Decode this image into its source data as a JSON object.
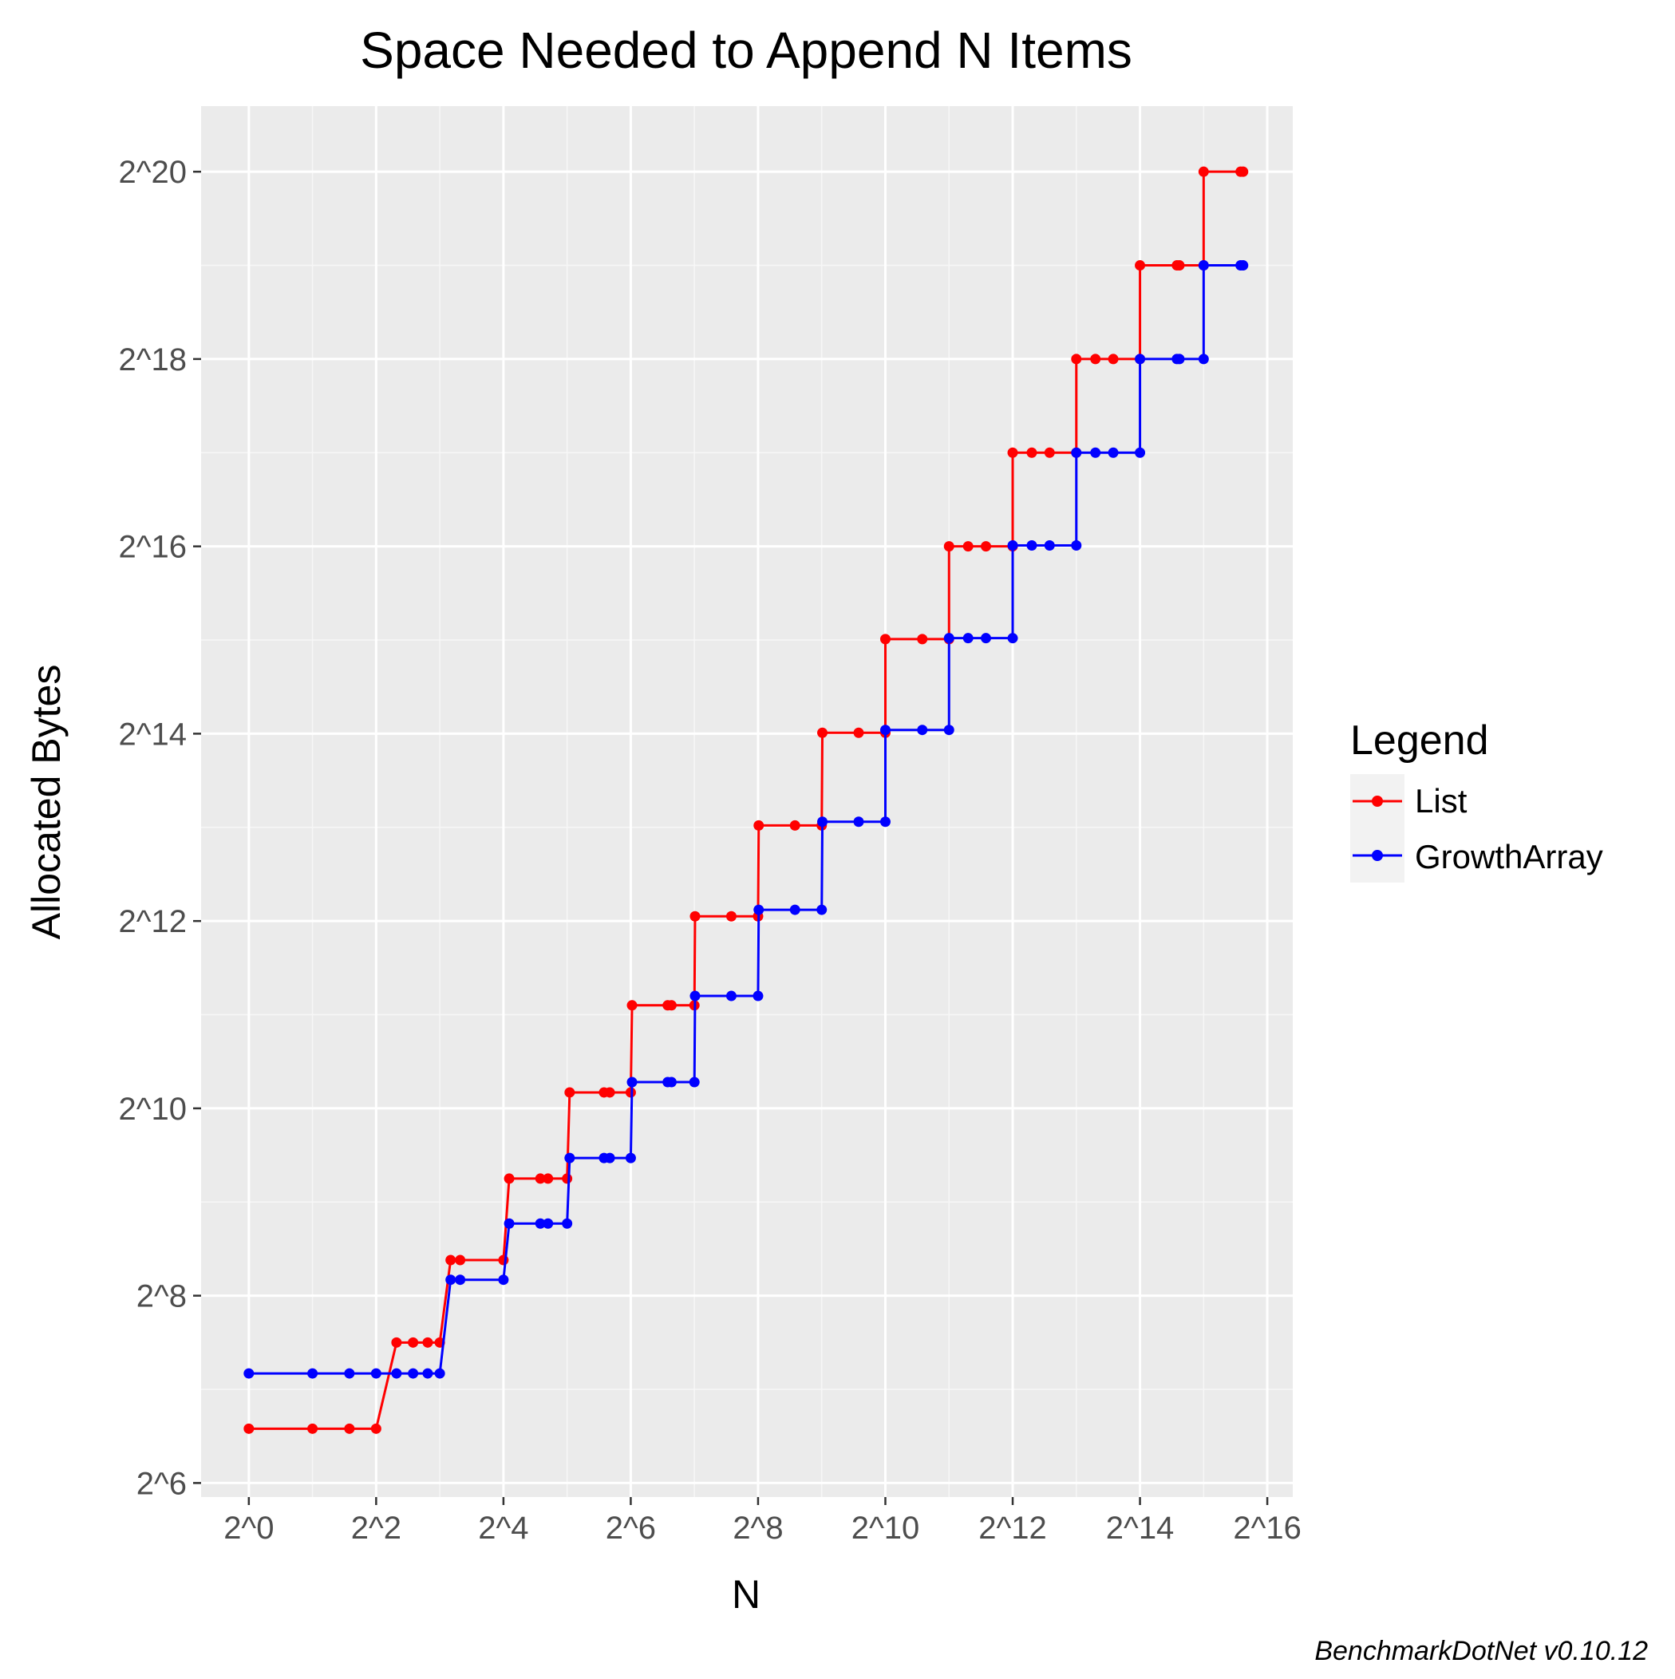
{
  "chart_data": {
    "type": "line",
    "title": "Space Needed to Append N Items",
    "xlabel": "N",
    "ylabel": "Allocated Bytes",
    "x_scale": "log2",
    "y_scale": "log2",
    "xlim_log2": [
      -0.75,
      16.4
    ],
    "ylim_log2": [
      5.85,
      20.7
    ],
    "x_ticks": [
      {
        "log2": 0,
        "label": "2^0"
      },
      {
        "log2": 2,
        "label": "2^2"
      },
      {
        "log2": 4,
        "label": "2^4"
      },
      {
        "log2": 6,
        "label": "2^6"
      },
      {
        "log2": 8,
        "label": "2^8"
      },
      {
        "log2": 10,
        "label": "2^10"
      },
      {
        "log2": 12,
        "label": "2^12"
      },
      {
        "log2": 14,
        "label": "2^14"
      },
      {
        "log2": 16,
        "label": "2^16"
      }
    ],
    "y_ticks": [
      {
        "log2": 6,
        "label": "2^6"
      },
      {
        "log2": 8,
        "label": "2^8"
      },
      {
        "log2": 10,
        "label": "2^10"
      },
      {
        "log2": 12,
        "label": "2^12"
      },
      {
        "log2": 14,
        "label": "2^14"
      },
      {
        "log2": 16,
        "label": "2^16"
      },
      {
        "log2": 18,
        "label": "2^18"
      },
      {
        "log2": 20,
        "label": "2^20"
      }
    ],
    "grid": true,
    "legend": {
      "title": "Legend",
      "position": "right"
    },
    "caption": "BenchmarkDotNet v0.10.12",
    "series": [
      {
        "name": "List",
        "color": "#ff0000",
        "points_log2": [
          [
            0,
            6.58
          ],
          [
            1,
            6.58
          ],
          [
            1.58,
            6.58
          ],
          [
            2,
            6.58
          ],
          [
            2.32,
            7.5
          ],
          [
            2.58,
            7.5
          ],
          [
            2.81,
            7.5
          ],
          [
            3,
            7.5
          ],
          [
            3.17,
            8.38
          ],
          [
            3.32,
            8.38
          ],
          [
            4,
            8.38
          ],
          [
            4.09,
            9.25
          ],
          [
            4.58,
            9.25
          ],
          [
            4.7,
            9.25
          ],
          [
            5,
            9.25
          ],
          [
            5.04,
            10.17
          ],
          [
            5.58,
            10.17
          ],
          [
            5.67,
            10.17
          ],
          [
            6,
            10.17
          ],
          [
            6.02,
            11.1
          ],
          [
            6.58,
            11.1
          ],
          [
            6.64,
            11.1
          ],
          [
            7,
            11.1
          ],
          [
            7.01,
            12.05
          ],
          [
            7.58,
            12.05
          ],
          [
            8,
            12.05
          ],
          [
            8.01,
            13.02
          ],
          [
            8.58,
            13.02
          ],
          [
            9,
            13.02
          ],
          [
            9.01,
            14.01
          ],
          [
            9.58,
            14.01
          ],
          [
            10,
            14.01
          ],
          [
            10,
            15.01
          ],
          [
            10.58,
            15.01
          ],
          [
            11,
            15.01
          ],
          [
            11,
            16.0
          ],
          [
            11.3,
            16.0
          ],
          [
            11.58,
            16.0
          ],
          [
            12,
            16.0
          ],
          [
            12,
            17.0
          ],
          [
            12.3,
            17.0
          ],
          [
            12.58,
            17.0
          ],
          [
            13,
            17.0
          ],
          [
            13,
            18.0
          ],
          [
            13.3,
            18.0
          ],
          [
            13.58,
            18.0
          ],
          [
            14,
            18.0
          ],
          [
            14,
            19.0
          ],
          [
            14.58,
            19.0
          ],
          [
            14.62,
            19.0
          ],
          [
            15,
            19.0
          ],
          [
            15,
            20.0
          ],
          [
            15.58,
            20.0
          ],
          [
            15.62,
            20.0
          ]
        ]
      },
      {
        "name": "GrowthArray",
        "color": "#0000ff",
        "points_log2": [
          [
            0,
            7.17
          ],
          [
            1,
            7.17
          ],
          [
            1.58,
            7.17
          ],
          [
            2,
            7.17
          ],
          [
            2.32,
            7.17
          ],
          [
            2.58,
            7.17
          ],
          [
            2.81,
            7.17
          ],
          [
            3,
            7.17
          ],
          [
            3.17,
            8.17
          ],
          [
            3.32,
            8.17
          ],
          [
            4,
            8.17
          ],
          [
            4.09,
            8.77
          ],
          [
            4.58,
            8.77
          ],
          [
            4.7,
            8.77
          ],
          [
            5,
            8.77
          ],
          [
            5.04,
            9.47
          ],
          [
            5.58,
            9.47
          ],
          [
            5.67,
            9.47
          ],
          [
            6,
            9.47
          ],
          [
            6.02,
            10.28
          ],
          [
            6.58,
            10.28
          ],
          [
            6.64,
            10.28
          ],
          [
            7,
            10.28
          ],
          [
            7.01,
            11.2
          ],
          [
            7.58,
            11.2
          ],
          [
            8,
            11.2
          ],
          [
            8.01,
            12.12
          ],
          [
            8.58,
            12.12
          ],
          [
            9,
            12.12
          ],
          [
            9.01,
            13.06
          ],
          [
            9.58,
            13.06
          ],
          [
            10,
            13.06
          ],
          [
            10,
            14.04
          ],
          [
            10.58,
            14.04
          ],
          [
            11,
            14.04
          ],
          [
            11,
            15.02
          ],
          [
            11.3,
            15.02
          ],
          [
            11.58,
            15.02
          ],
          [
            12,
            15.02
          ],
          [
            12,
            16.01
          ],
          [
            12.3,
            16.01
          ],
          [
            12.58,
            16.01
          ],
          [
            13,
            16.01
          ],
          [
            13,
            17.0
          ],
          [
            13.3,
            17.0
          ],
          [
            13.58,
            17.0
          ],
          [
            14,
            17.0
          ],
          [
            14,
            18.0
          ],
          [
            14.58,
            18.0
          ],
          [
            14.62,
            18.0
          ],
          [
            15,
            18.0
          ],
          [
            15,
            19.0
          ],
          [
            15.58,
            19.0
          ],
          [
            15.62,
            19.0
          ]
        ]
      }
    ]
  }
}
